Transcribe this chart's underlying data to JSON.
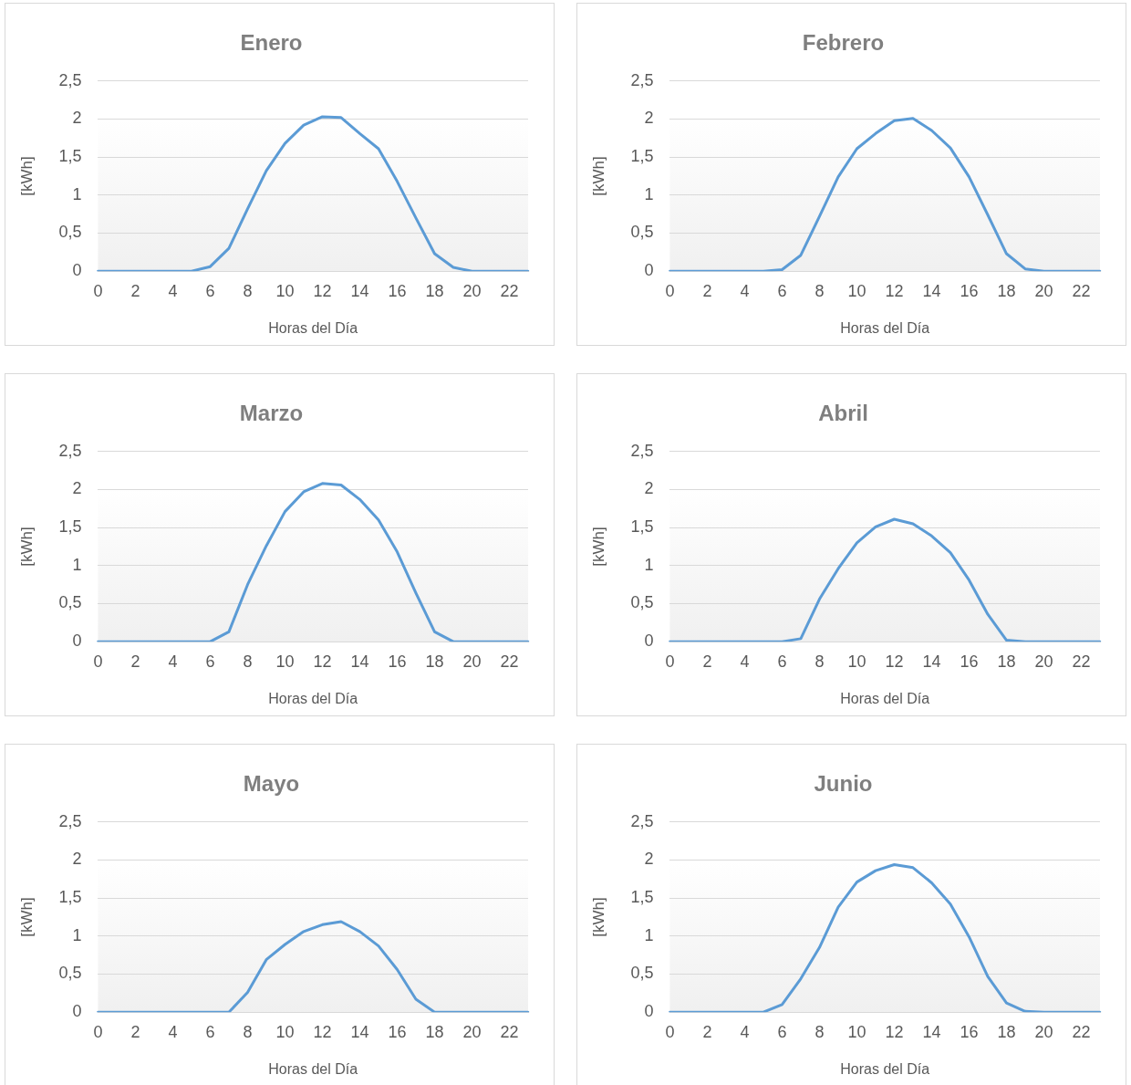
{
  "chart_data": [
    {
      "type": "line",
      "title": "Enero",
      "xlabel": "Horas del Día",
      "ylabel": "[kWh]",
      "categories": [
        "0",
        null,
        "2",
        null,
        "4",
        null,
        "6",
        null,
        "8",
        null,
        "10",
        null,
        "12",
        null,
        "14",
        null,
        "16",
        null,
        "18",
        null,
        "20",
        null,
        "22",
        null
      ],
      "values": [
        0,
        0,
        0,
        0,
        0,
        0,
        0.06,
        0.3,
        0.82,
        1.32,
        1.68,
        1.92,
        2.03,
        2.02,
        1.81,
        1.61,
        1.18,
        0.7,
        0.23,
        0.05,
        0,
        0,
        0,
        0
      ],
      "color": "#5b9bd5",
      "ylim": [
        0,
        2.5
      ],
      "yticks": [
        0,
        {
          "value": 0.5,
          "label": "0,5"
        },
        1,
        {
          "value": 1.5,
          "label": "1,5"
        },
        2,
        {
          "value": 2.5,
          "label": "2,5"
        }
      ],
      "grid": "y",
      "legend": false,
      "marker": "none"
    },
    {
      "type": "line",
      "title": "Febrero",
      "xlabel": "Horas del Día",
      "ylabel": "[kWh]",
      "categories": [
        "0",
        null,
        "2",
        null,
        "4",
        null,
        "6",
        null,
        "8",
        null,
        "10",
        null,
        "12",
        null,
        "14",
        null,
        "16",
        null,
        "18",
        null,
        "20",
        null,
        "22",
        null
      ],
      "values": [
        0,
        0,
        0,
        0,
        0,
        0,
        0.02,
        0.21,
        0.72,
        1.24,
        1.61,
        1.81,
        1.98,
        2.01,
        1.85,
        1.62,
        1.24,
        0.74,
        0.23,
        0.03,
        0,
        0,
        0,
        0
      ],
      "color": "#5b9bd5",
      "ylim": [
        0,
        2.5
      ],
      "yticks": [
        0,
        {
          "value": 0.5,
          "label": "0,5"
        },
        1,
        {
          "value": 1.5,
          "label": "1,5"
        },
        2,
        {
          "value": 2.5,
          "label": "2,5"
        }
      ],
      "grid": "y",
      "legend": false,
      "marker": "none"
    },
    {
      "type": "line",
      "title": "Marzo",
      "xlabel": "Horas del Día",
      "ylabel": "[kWh]",
      "categories": [
        "0",
        null,
        "2",
        null,
        "4",
        null,
        "6",
        null,
        "8",
        null,
        "10",
        null,
        "12",
        null,
        "14",
        null,
        "16",
        null,
        "18",
        null,
        "20",
        null,
        "22",
        null
      ],
      "values": [
        0,
        0,
        0,
        0,
        0,
        0,
        0,
        0.13,
        0.75,
        1.26,
        1.71,
        1.97,
        2.08,
        2.06,
        1.87,
        1.6,
        1.18,
        0.64,
        0.13,
        0,
        0,
        0,
        0,
        0
      ],
      "color": "#5b9bd5",
      "ylim": [
        0,
        2.5
      ],
      "yticks": [
        0,
        {
          "value": 0.5,
          "label": "0,5"
        },
        1,
        {
          "value": 1.5,
          "label": "1,5"
        },
        2,
        {
          "value": 2.5,
          "label": "2,5"
        }
      ],
      "grid": "y",
      "legend": false,
      "marker": "none"
    },
    {
      "type": "line",
      "title": "Abril",
      "xlabel": "Horas del Día",
      "ylabel": "[kWh]",
      "categories": [
        "0",
        null,
        "2",
        null,
        "4",
        null,
        "6",
        null,
        "8",
        null,
        "10",
        null,
        "12",
        null,
        "14",
        null,
        "16",
        null,
        "18",
        null,
        "20",
        null,
        "22",
        null
      ],
      "values": [
        0,
        0,
        0,
        0,
        0,
        0,
        0,
        0.04,
        0.56,
        0.96,
        1.3,
        1.51,
        1.61,
        1.55,
        1.39,
        1.17,
        0.81,
        0.36,
        0.02,
        0,
        0,
        0,
        0,
        0
      ],
      "color": "#5b9bd5",
      "ylim": [
        0,
        2.5
      ],
      "yticks": [
        0,
        {
          "value": 0.5,
          "label": "0,5"
        },
        1,
        {
          "value": 1.5,
          "label": "1,5"
        },
        2,
        {
          "value": 2.5,
          "label": "2,5"
        }
      ],
      "grid": "y",
      "legend": false,
      "marker": "none"
    },
    {
      "type": "line",
      "title": "Mayo",
      "xlabel": "Horas del Día",
      "ylabel": "[kWh]",
      "categories": [
        "0",
        null,
        "2",
        null,
        "4",
        null,
        "6",
        null,
        "8",
        null,
        "10",
        null,
        "12",
        null,
        "14",
        null,
        "16",
        null,
        "18",
        null,
        "20",
        null,
        "22",
        null
      ],
      "values": [
        0,
        0,
        0,
        0,
        0,
        0,
        0,
        0,
        0.26,
        0.69,
        0.89,
        1.06,
        1.15,
        1.19,
        1.06,
        0.87,
        0.56,
        0.17,
        0,
        0,
        0,
        0,
        0,
        0
      ],
      "color": "#5b9bd5",
      "ylim": [
        0,
        2.5
      ],
      "yticks": [
        0,
        {
          "value": 0.5,
          "label": "0,5"
        },
        1,
        {
          "value": 1.5,
          "label": "1,5"
        },
        2,
        {
          "value": 2.5,
          "label": "2,5"
        }
      ],
      "grid": "y",
      "legend": false,
      "marker": "none"
    },
    {
      "type": "line",
      "title": "Junio",
      "xlabel": "Horas del Día",
      "ylabel": "[kWh]",
      "categories": [
        "0",
        null,
        "2",
        null,
        "4",
        null,
        "6",
        null,
        "8",
        null,
        "10",
        null,
        "12",
        null,
        "14",
        null,
        "16",
        null,
        "18",
        null,
        "20",
        null,
        "22",
        null
      ],
      "values": [
        0,
        0,
        0,
        0,
        0,
        0,
        0.1,
        0.44,
        0.85,
        1.38,
        1.71,
        1.86,
        1.94,
        1.9,
        1.7,
        1.42,
        0.99,
        0.47,
        0.12,
        0.01,
        0,
        0,
        0,
        0
      ],
      "color": "#5b9bd5",
      "ylim": [
        0,
        2.5
      ],
      "yticks": [
        0,
        {
          "value": 0.5,
          "label": "0,5"
        },
        1,
        {
          "value": 1.5,
          "label": "1,5"
        },
        2,
        {
          "value": 2.5,
          "label": "2,5"
        }
      ],
      "grid": "y",
      "legend": false,
      "marker": "none"
    }
  ]
}
